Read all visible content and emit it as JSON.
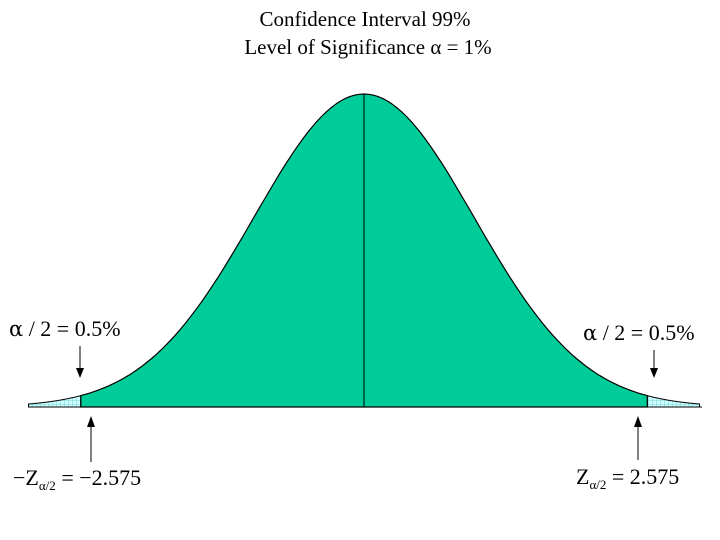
{
  "title": {
    "line1": "Confidence Interval   99%",
    "line2": "Level of Significance  α = 1%"
  },
  "tail_labels": {
    "left": {
      "alpha_symbol": "α",
      "text": " / 2 = 0.5%"
    },
    "right": {
      "alpha_symbol": "α",
      "text": " / 2 = 0.5%"
    }
  },
  "critical_values": {
    "left": {
      "sign": "−",
      "z": "Z",
      "subscript": "α/2",
      "value": " = −2.575"
    },
    "right": {
      "sign": "",
      "z": "Z",
      "subscript": "α/2",
      "value": " = 2.575"
    }
  },
  "colors": {
    "central_fill": "#00CC99",
    "tail_fill": "#CCFFFF",
    "tail_hatch": "#66CCCC",
    "outline": "#000000"
  },
  "distribution": {
    "type": "standard-normal",
    "lower_critical_z": -2.575,
    "upper_critical_z": 2.575
  }
}
